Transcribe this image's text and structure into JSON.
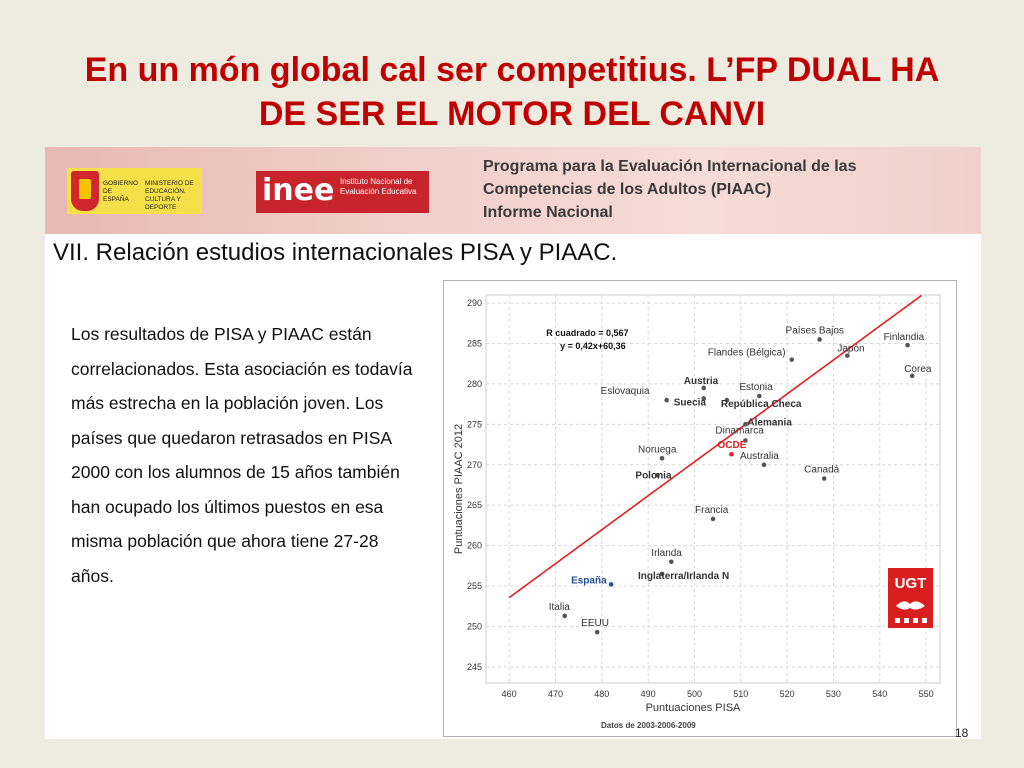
{
  "slide": {
    "title_line1": "En un món global cal ser competitius. L’FP DUAL HA",
    "title_line2": "DE SER EL MOTOR DEL CANVI",
    "page_number": "18"
  },
  "banner": {
    "gov_text": "GOBIERNO DE ESPAÑA",
    "ministry_text": "MINISTERIO DE EDUCACIÓN, CULTURA Y DEPORTE",
    "inee_logo": "inee",
    "inee_sub": "Instituto Nacional de Evaluación Educativa",
    "line1": "Programa para la Evaluación Internacional de las",
    "line2": "Competencias de los Adultos (PIAAC)",
    "line3": "Informe Nacional"
  },
  "section_title": "VII. Relación estudios internacionales PISA y PIAAC.",
  "body_text": "Los resultados de PISA y PIAAC están correlacionados. Esta asociación es todavía más estrecha en la población joven. Los países que quedaron retrasados en PISA 2000 con los alumnos de 15 años también han ocupado los últimos puestos en esa misma población que ahora tiene 27-28 años.",
  "chart_data": {
    "type": "scatter",
    "xlabel": "Puntuaciones PISA",
    "ylabel": "Puntuaciones PIAAC 2012",
    "note": "Datos de 2003-2006-2009",
    "xlim": [
      455,
      553
    ],
    "ylim": [
      243,
      291
    ],
    "x_ticks": [
      460,
      470,
      480,
      490,
      500,
      510,
      520,
      530,
      540,
      550
    ],
    "y_ticks": [
      245,
      250,
      255,
      260,
      265,
      270,
      275,
      280,
      285,
      290
    ],
    "grid": true,
    "regression": {
      "label_r2": "R cuadrado = 0,567",
      "label_eq": "y = 0,42x+60,36",
      "slope": 0.42,
      "intercept": 60.36,
      "x_range": [
        460,
        549
      ],
      "color": "#e02020"
    },
    "points": [
      {
        "name": "Finlandia",
        "x": 546,
        "y": 284.8
      },
      {
        "name": "Corea",
        "x": 547,
        "y": 281.0
      },
      {
        "name": "Países Bajos",
        "x": 527,
        "y": 285.5
      },
      {
        "name": "Japón",
        "x": 533,
        "y": 283.5
      },
      {
        "name": "Flandes (Bélgica)",
        "x": 521,
        "y": 283.0
      },
      {
        "name": "Estonia",
        "x": 514,
        "y": 278.5
      },
      {
        "name": "Austria",
        "x": 502,
        "y": 279.5
      },
      {
        "name": "Eslovaquia",
        "x": 494,
        "y": 278.0
      },
      {
        "name": "Suecia",
        "x": 502,
        "y": 278.2
      },
      {
        "name": "República Checa",
        "x": 507,
        "y": 278.0
      },
      {
        "name": "Alemania",
        "x": 511,
        "y": 275.0
      },
      {
        "name": "Dinamarca",
        "x": 511,
        "y": 273.0
      },
      {
        "name": "OCDE",
        "x": 508,
        "y": 271.3
      },
      {
        "name": "Noruega",
        "x": 493,
        "y": 270.8
      },
      {
        "name": "Polonia",
        "x": 492,
        "y": 268.7
      },
      {
        "name": "Australia",
        "x": 515,
        "y": 270.0
      },
      {
        "name": "Canadá",
        "x": 528,
        "y": 268.3
      },
      {
        "name": "Francia",
        "x": 504,
        "y": 263.3
      },
      {
        "name": "Irlanda",
        "x": 495,
        "y": 258.0
      },
      {
        "name": "Inglaterra/Irlanda N",
        "x": 493,
        "y": 256.5
      },
      {
        "name": "España",
        "x": 482,
        "y": 255.2
      },
      {
        "name": "Italia",
        "x": 472,
        "y": 251.3
      },
      {
        "name": "EEUU",
        "x": 479,
        "y": 249.3
      }
    ]
  },
  "colors": {
    "title": "#c00000",
    "regression": "#e02020",
    "ocde": "#e02020",
    "espana": "#1f4e9a",
    "point": "#555555"
  },
  "ugt": {
    "text": "UGT"
  }
}
